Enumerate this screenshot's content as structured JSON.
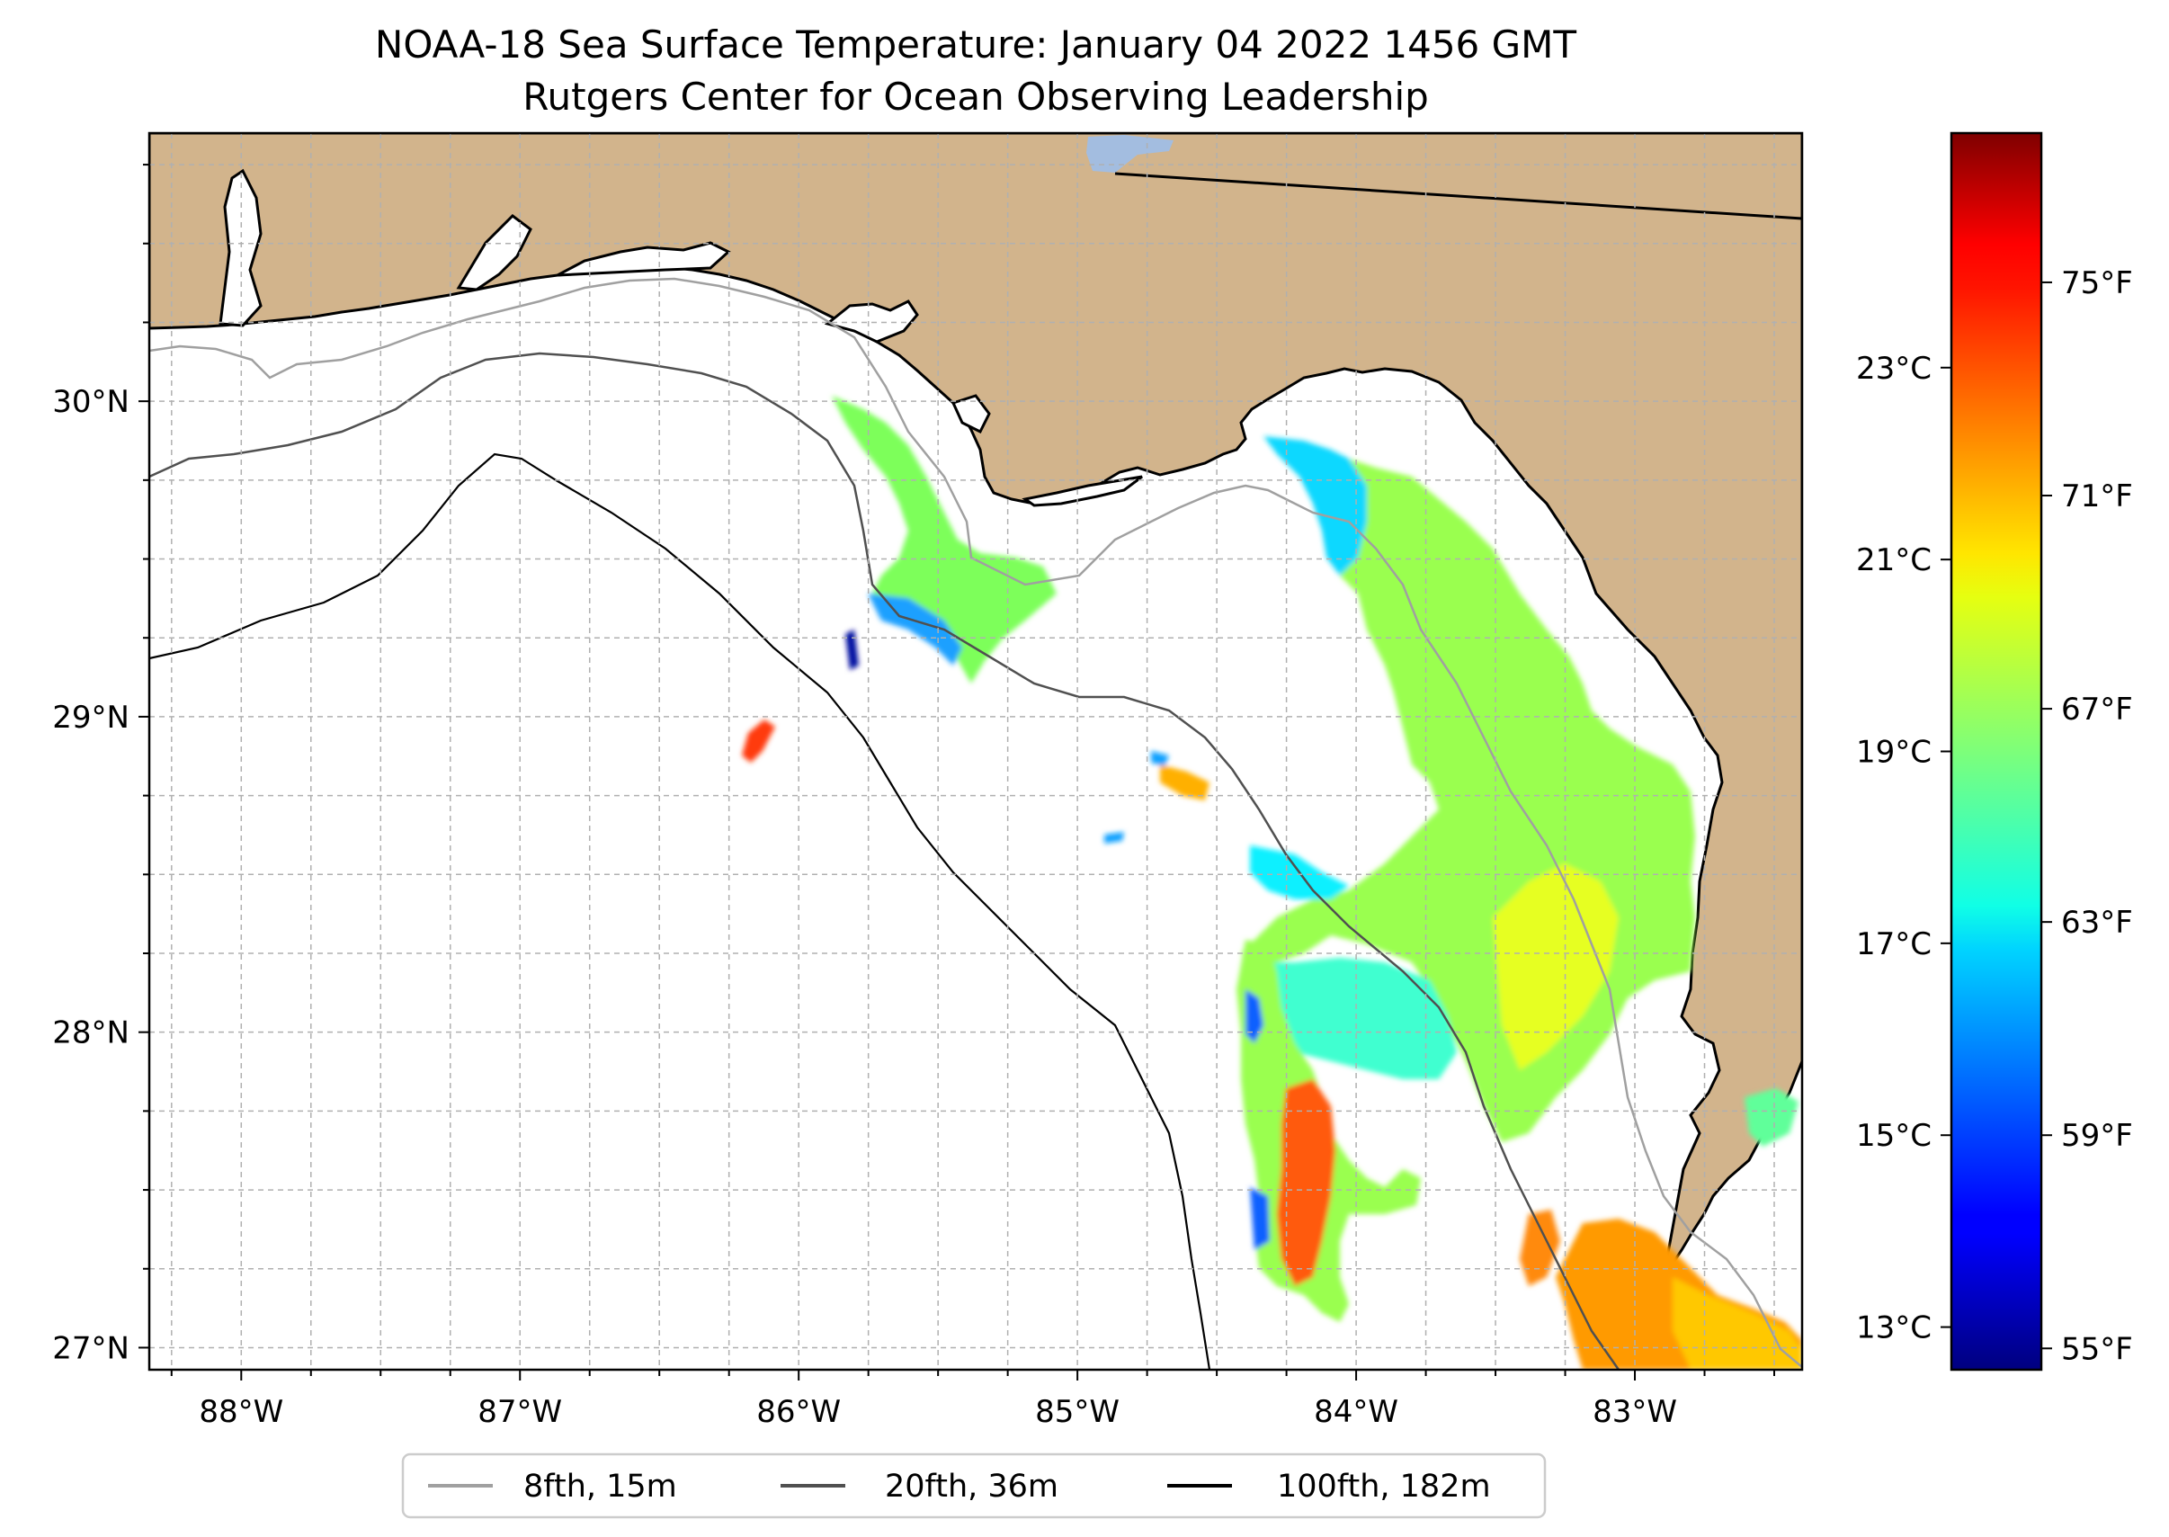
{
  "title": {
    "line1": "NOAA-18 Sea Surface Temperature: January 04 2022 1456 GMT",
    "line2": "Rutgers Center for Ocean Observing Leadership"
  },
  "colors": {
    "land": "#d2b48c",
    "ocean": "#ffffff",
    "lake": "#a3bde0",
    "coastline": "#000000",
    "grid": "#b0b0b0",
    "isobath_8fth": "#a0a0a0",
    "isobath_20fth": "#505050",
    "isobath_100fth": "#000000"
  },
  "map": {
    "lon_range": [
      -88.33,
      -82.4
    ],
    "lat_range": [
      26.93,
      30.85
    ],
    "lon_ticks": [
      {
        "value": -88,
        "label": "88°W"
      },
      {
        "value": -87,
        "label": "87°W"
      },
      {
        "value": -86,
        "label": "86°W"
      },
      {
        "value": -85,
        "label": "85°W"
      },
      {
        "value": -84,
        "label": "84°W"
      },
      {
        "value": -83,
        "label": "83°W"
      }
    ],
    "lat_ticks": [
      {
        "value": 30,
        "label": "30°N"
      },
      {
        "value": 29,
        "label": "29°N"
      },
      {
        "value": 28,
        "label": "28°N"
      },
      {
        "value": 27,
        "label": "27°N"
      }
    ],
    "grid": true,
    "grid_spacing_deg": 0.25
  },
  "colorbar": {
    "colormap": "jet",
    "range_f": [
      54.6,
      77.8
    ],
    "fahrenheit_ticks": [
      {
        "value": 75,
        "label": "75°F"
      },
      {
        "value": 71,
        "label": "71°F"
      },
      {
        "value": 67,
        "label": "67°F"
      },
      {
        "value": 63,
        "label": "63°F"
      },
      {
        "value": 59,
        "label": "59°F"
      },
      {
        "value": 55,
        "label": "55°F"
      }
    ],
    "celsius_ticks": [
      {
        "value": 23,
        "label": "23°C"
      },
      {
        "value": 21,
        "label": "21°C"
      },
      {
        "value": 19,
        "label": "19°C"
      },
      {
        "value": 17,
        "label": "17°C"
      },
      {
        "value": 15,
        "label": "15°C"
      },
      {
        "value": 13,
        "label": "13°C"
      }
    ]
  },
  "legend": {
    "position": "below map, centered",
    "items": [
      {
        "label": "8fth, 15m",
        "color": "#a0a0a0"
      },
      {
        "label": "20fth, 36m",
        "color": "#505050"
      },
      {
        "label": "100fth, 182m",
        "color": "#000000"
      }
    ]
  }
}
